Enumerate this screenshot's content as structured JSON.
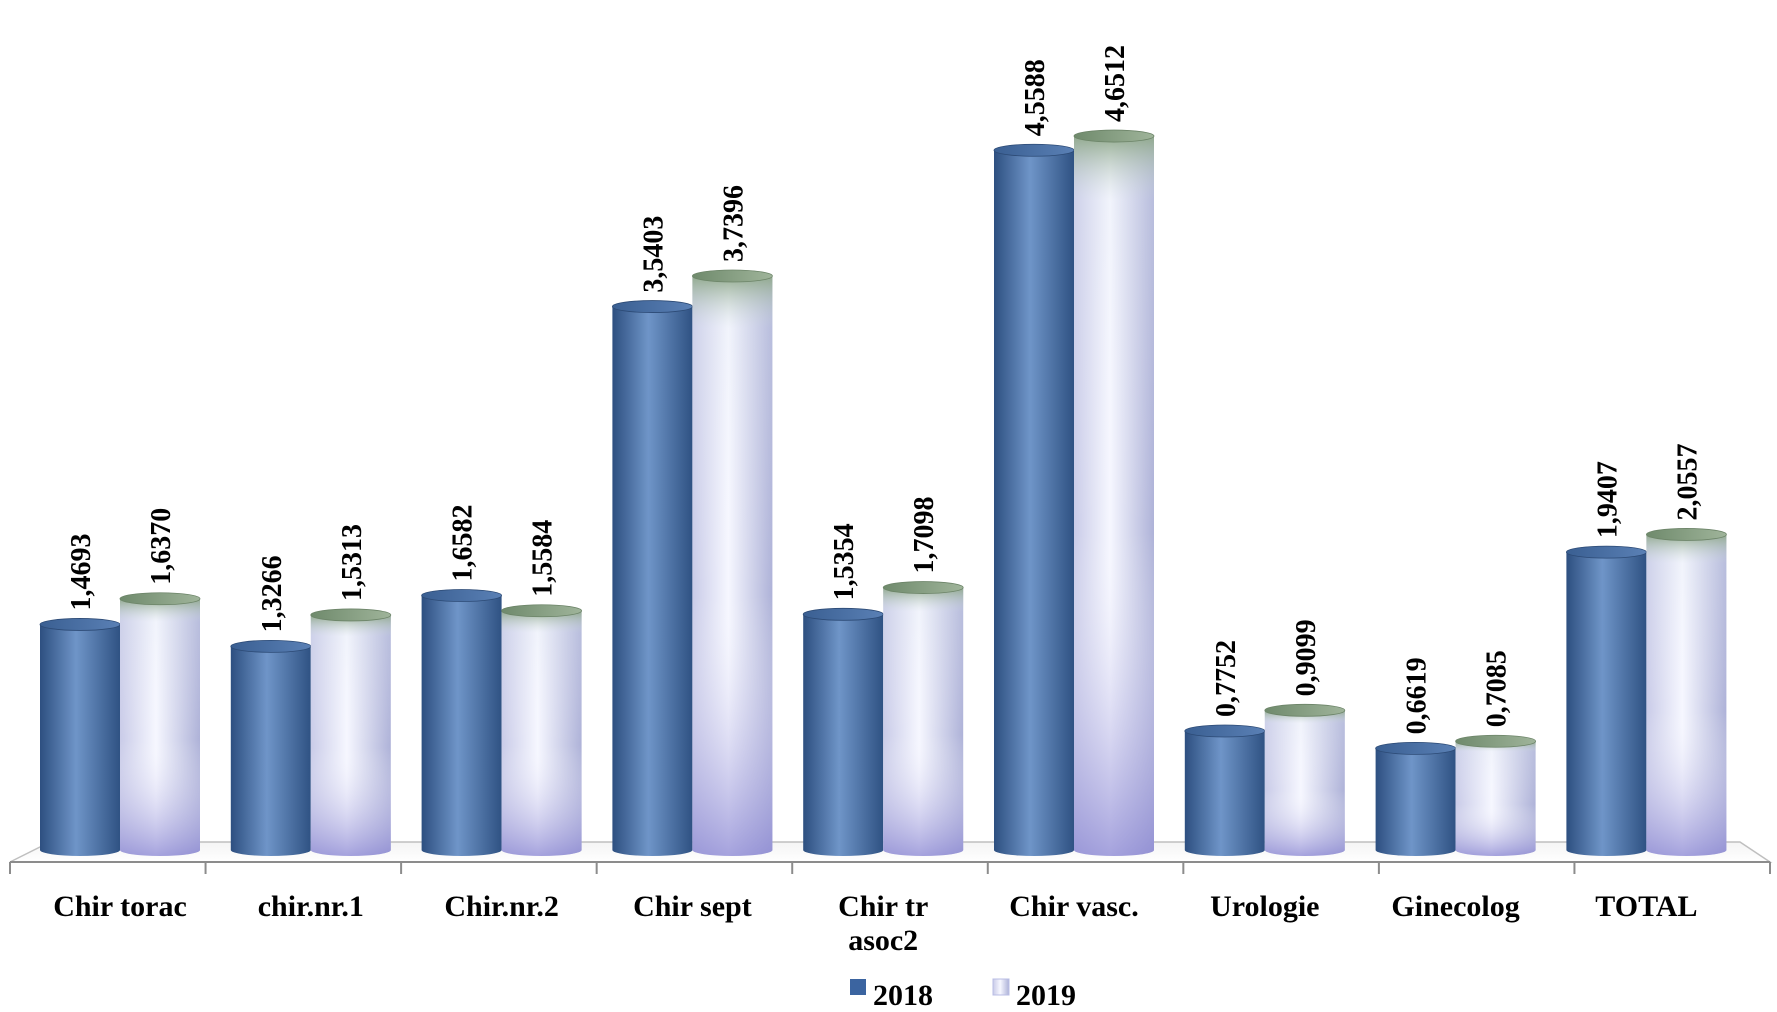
{
  "chart_data": {
    "type": "bar",
    "categories": [
      "Chir torac",
      "chir.nr.1",
      "Chir.nr.2",
      "Chir sept",
      "Chir tr asoc2",
      "Chir vasc.",
      "Urologie",
      "Ginecolog",
      "TOTAL"
    ],
    "category_lines": [
      [
        "Chir torac"
      ],
      [
        "chir.nr.1"
      ],
      [
        "Chir.nr.2"
      ],
      [
        "Chir sept"
      ],
      [
        "Chir tr",
        "asoc2"
      ],
      [
        "Chir vasc."
      ],
      [
        "Urologie"
      ],
      [
        "Ginecolog"
      ],
      [
        "TOTAL"
      ]
    ],
    "series": [
      {
        "name": "2018",
        "values": [
          1.4693,
          1.3266,
          1.6582,
          3.5403,
          1.5354,
          4.5588,
          0.7752,
          0.6619,
          1.9407
        ],
        "labels": [
          "1,4693",
          "1,3266",
          "1,6582",
          "3,5403",
          "1,5354",
          "4,5588",
          "0,7752",
          "0,6619",
          "1,9407"
        ],
        "color": "#4a72a8"
      },
      {
        "name": "2019",
        "values": [
          1.637,
          1.5313,
          1.5584,
          3.7396,
          1.7098,
          4.6512,
          0.9099,
          0.7085,
          2.0557
        ],
        "labels": [
          "1,6370",
          "1,5313",
          "1,5584",
          "3,7396",
          "1,7098",
          "4,6512",
          "0,9099",
          "0,7085",
          "2,0557"
        ],
        "color": "#d8dcf8"
      }
    ],
    "ylim": [
      0,
      5
    ],
    "legend": "bottom",
    "grid": false,
    "style": "3d-cylinder"
  }
}
